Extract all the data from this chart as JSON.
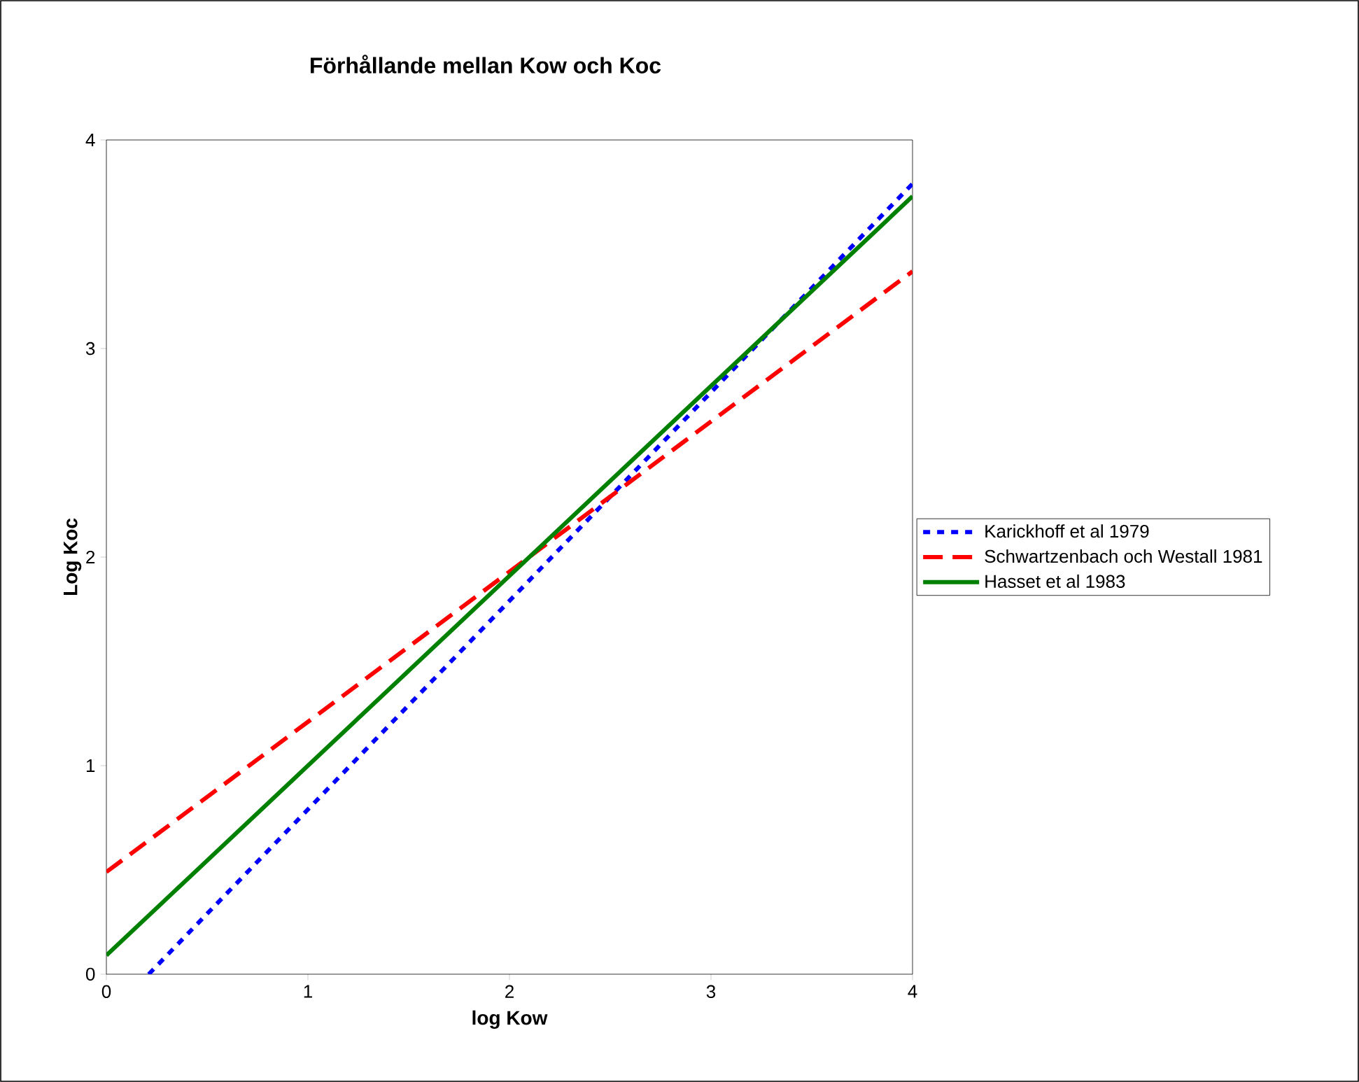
{
  "chart_data": {
    "type": "line",
    "title": "Förhållande mellan Kow och Koc",
    "xlabel": "log Kow",
    "ylabel": "Log Koc",
    "xlim": [
      0,
      4
    ],
    "ylim": [
      0,
      4
    ],
    "xticks": [
      0,
      1,
      2,
      3,
      4
    ],
    "yticks": [
      0,
      1,
      2,
      3,
      4
    ],
    "legend": "right",
    "marker": "none",
    "series": [
      {
        "name": "Karickhoff et al 1979",
        "color": "#0000ff",
        "line_style": "dotted",
        "x": [
          0.21,
          4
        ],
        "values": [
          0,
          3.79
        ]
      },
      {
        "name": "Schwartzenbach och Westall 1981",
        "color": "#ff0000",
        "line_style": "dashed",
        "x": [
          0,
          4
        ],
        "values": [
          0.49,
          3.37
        ]
      },
      {
        "name": "Hasset et al 1983",
        "color": "#008000",
        "line_style": "solid",
        "x": [
          0,
          4
        ],
        "values": [
          0.09,
          3.73
        ]
      }
    ]
  }
}
